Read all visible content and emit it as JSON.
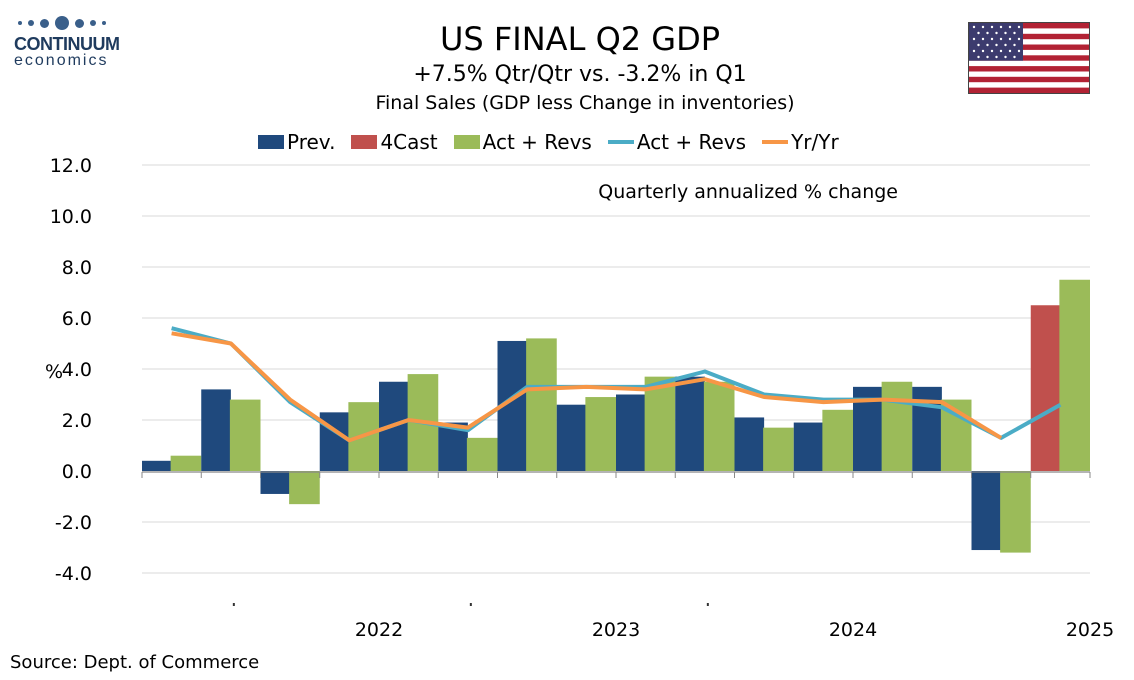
{
  "logo": {
    "name": "CONTINUUM",
    "sub": "economics"
  },
  "header": {
    "title": "US FINAL Q2  GDP",
    "subtitle": "+7.5% Qtr/Qtr vs. -3.2% in Q1",
    "subtitle2": "Final Sales (GDP less Change in inventories)"
  },
  "flag_icon": "us-flag-icon",
  "source": "Source: Dept. of Commerce",
  "colors": {
    "prev": "#1f497d",
    "forecast": "#c0504d",
    "act_bar": "#9bbb59",
    "act_line": "#4bacc6",
    "yoy_line": "#f79646"
  },
  "chart_data": {
    "type": "bar",
    "annotation": "Quarterly annualized % change",
    "ylabel": "%",
    "ylim": [
      -4,
      12
    ],
    "yticks": [
      "12.0",
      "10.0",
      "8.0",
      "6.0",
      "4.0",
      "2.0",
      "0.0",
      "-2.0",
      "-4.0"
    ],
    "grid": true,
    "legend_position": "top",
    "quarters": [
      "2021Q3",
      "2021Q4",
      "2022Q1",
      "2022Q2",
      "2022Q3",
      "2022Q4",
      "2023Q1",
      "2023Q2",
      "2023Q3",
      "2023Q4",
      "2024Q1",
      "2024Q2",
      "2024Q3",
      "2024Q4",
      "2025Q1",
      "2025Q2"
    ],
    "year_labels": [
      "2022",
      "2023",
      "2024",
      "2025"
    ],
    "series": [
      {
        "name": "Prev.",
        "kind": "bar",
        "values": [
          0.4,
          3.2,
          -0.9,
          2.3,
          3.5,
          1.9,
          5.1,
          2.6,
          3.0,
          3.7,
          2.1,
          1.9,
          3.3,
          3.3,
          -3.1,
          null
        ]
      },
      {
        "name": "4Cast",
        "kind": "bar",
        "values": [
          null,
          null,
          null,
          null,
          null,
          null,
          null,
          null,
          null,
          null,
          null,
          null,
          null,
          null,
          null,
          6.5
        ]
      },
      {
        "name": "Act + Revs",
        "kind": "bar",
        "values": [
          0.6,
          2.8,
          -1.3,
          2.7,
          3.8,
          1.3,
          5.2,
          2.9,
          3.7,
          3.5,
          1.7,
          2.4,
          3.5,
          2.8,
          -3.2,
          7.5
        ]
      },
      {
        "name": "Act + Revs",
        "kind": "line",
        "values": [
          5.6,
          5.0,
          2.7,
          1.2,
          2.0,
          1.6,
          3.3,
          3.3,
          3.3,
          3.9,
          3.0,
          2.8,
          2.8,
          2.5,
          1.3,
          2.6
        ]
      },
      {
        "name": "Yr/Yr",
        "kind": "line",
        "values": [
          5.4,
          5.0,
          2.8,
          1.2,
          2.0,
          1.7,
          3.2,
          3.3,
          3.2,
          3.6,
          2.9,
          2.7,
          2.8,
          2.7,
          1.3,
          null
        ]
      }
    ]
  }
}
